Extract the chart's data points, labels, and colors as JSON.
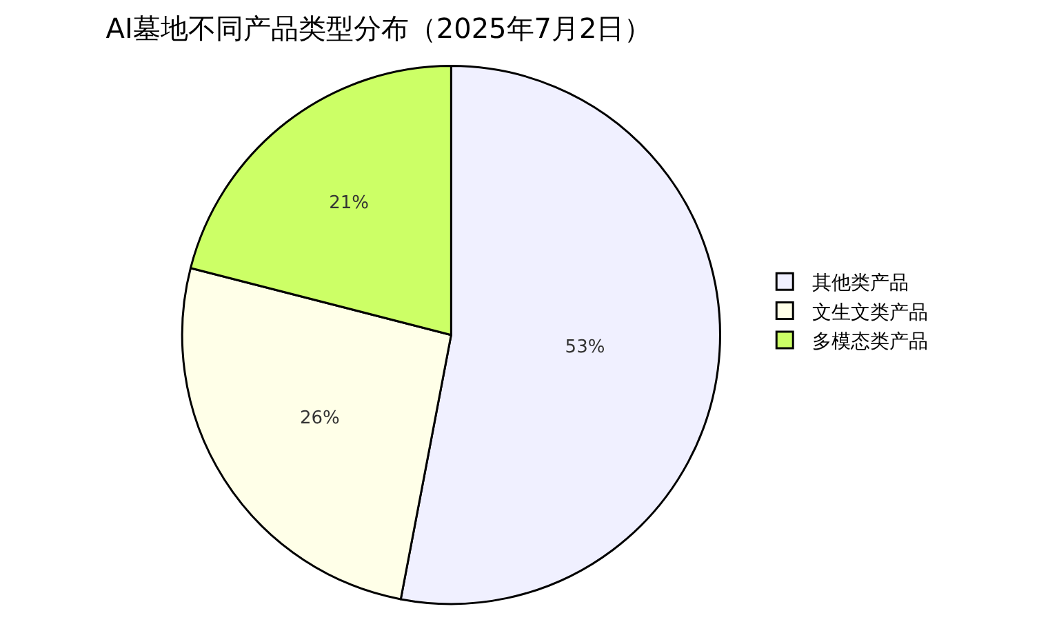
{
  "chart_data": {
    "type": "pie",
    "title": "AI墓地不同产品类型分布（2025年7月2日）",
    "categories": [
      "其他类产品",
      "文生文类产品",
      "多模态类产品"
    ],
    "values": [
      53,
      26,
      21
    ],
    "colors": [
      "#f0f0ff",
      "#ffffe8",
      "#ccff66"
    ],
    "value_labels": [
      "53%",
      "26%",
      "21%"
    ],
    "legend": "right"
  }
}
